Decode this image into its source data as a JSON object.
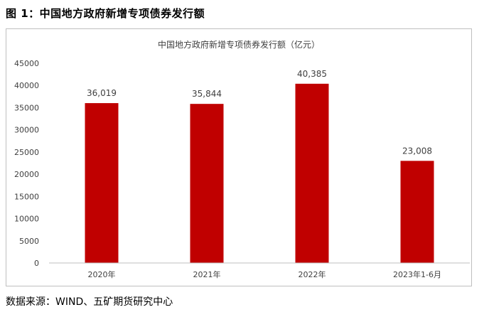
{
  "figure": {
    "caption": "图 1：中国地方政府新增专项债券发行额",
    "source": "数据来源：WIND、五矿期货研究中心"
  },
  "chart_data": {
    "type": "bar",
    "title": "中国地方政府新增专项债券发行额（亿元）",
    "categories": [
      "2020年",
      "2021年",
      "2022年",
      "2023年1-6月"
    ],
    "values": [
      36019,
      35844,
      40385,
      23008
    ],
    "value_labels": [
      "36,019",
      "35,844",
      "40,385",
      "23,008"
    ],
    "ylim": [
      0,
      45000
    ],
    "yticks": [
      0,
      5000,
      10000,
      15000,
      20000,
      25000,
      30000,
      35000,
      40000,
      45000
    ],
    "ytick_labels": [
      "0",
      "5000",
      "10000",
      "15000",
      "20000",
      "25000",
      "30000",
      "35000",
      "40000",
      "45000"
    ],
    "bar_color": "#c00000",
    "grid": false,
    "legend": "none"
  }
}
